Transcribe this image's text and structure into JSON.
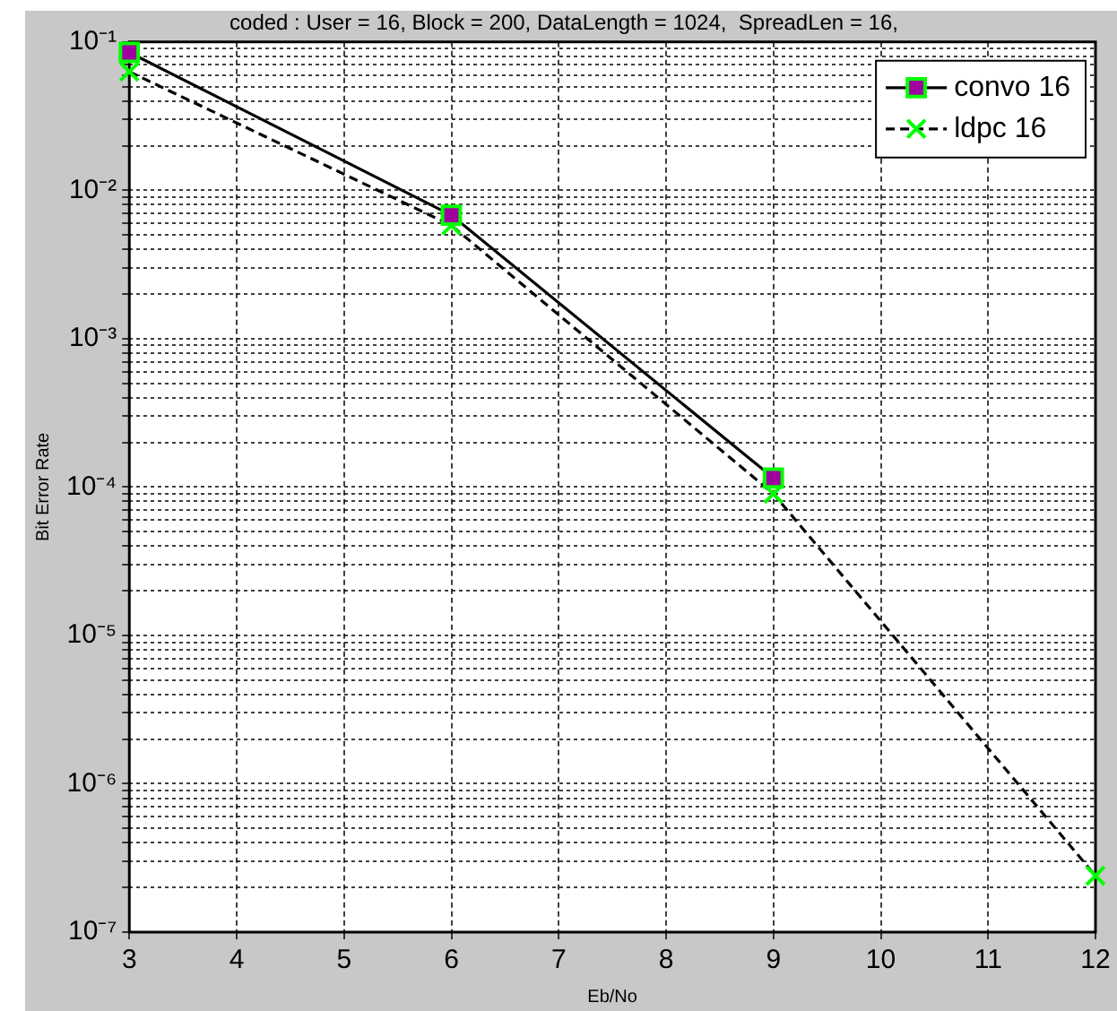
{
  "chart_data": {
    "type": "line",
    "subtitle": "coded : User = 16, Block = 200, DataLength = 1024,  SpreadLen = 16,",
    "xlabel": "Eb/No",
    "ylabel": "Bit Error Rate",
    "log": "y",
    "grid": true,
    "legend": "top right",
    "xlim": [
      3,
      12
    ],
    "xticks": [
      3,
      4,
      5,
      6,
      7,
      8,
      9,
      10,
      11,
      12
    ],
    "ylim": [
      1e-07,
      0.1
    ],
    "yticks": [
      {
        "value": 1e-07,
        "label": "10⁻⁷"
      },
      {
        "value": 2e-07,
        "label": null
      },
      {
        "value": 3e-07,
        "label": null
      },
      {
        "value": 4e-07,
        "label": null
      },
      {
        "value": 5e-07,
        "label": null
      },
      {
        "value": 6e-07,
        "label": null
      },
      {
        "value": 7e-07,
        "label": null
      },
      {
        "value": 8e-07,
        "label": null
      },
      {
        "value": 9e-07,
        "label": null
      },
      {
        "value": 1e-06,
        "label": "10⁻⁶"
      },
      {
        "value": 2e-06,
        "label": null
      },
      {
        "value": 3e-06,
        "label": null
      },
      {
        "value": 4e-06,
        "label": null
      },
      {
        "value": 5e-06,
        "label": null
      },
      {
        "value": 6e-06,
        "label": null
      },
      {
        "value": 7e-06,
        "label": null
      },
      {
        "value": 8e-06,
        "label": null
      },
      {
        "value": 9e-06,
        "label": null
      },
      {
        "value": 1e-05,
        "label": "10⁻⁵"
      },
      {
        "value": 2e-05,
        "label": null
      },
      {
        "value": 3e-05,
        "label": null
      },
      {
        "value": 4e-05,
        "label": null
      },
      {
        "value": 5e-05,
        "label": null
      },
      {
        "value": 6e-05,
        "label": null
      },
      {
        "value": 7e-05,
        "label": null
      },
      {
        "value": 8e-05,
        "label": null
      },
      {
        "value": 9e-05,
        "label": null
      },
      {
        "value": 0.0001,
        "label": "10⁻⁴"
      },
      {
        "value": 0.0002,
        "label": null
      },
      {
        "value": 0.0003,
        "label": null
      },
      {
        "value": 0.0004,
        "label": null
      },
      {
        "value": 0.0005,
        "label": null
      },
      {
        "value": 0.0006,
        "label": null
      },
      {
        "value": 0.0007,
        "label": null
      },
      {
        "value": 0.0008,
        "label": null
      },
      {
        "value": 0.0009,
        "label": null
      },
      {
        "value": 0.001,
        "label": "10⁻³"
      },
      {
        "value": 0.002,
        "label": null
      },
      {
        "value": 0.003,
        "label": null
      },
      {
        "value": 0.004,
        "label": null
      },
      {
        "value": 0.005,
        "label": null
      },
      {
        "value": 0.006,
        "label": null
      },
      {
        "value": 0.007,
        "label": null
      },
      {
        "value": 0.008,
        "label": null
      },
      {
        "value": 0.009,
        "label": null
      },
      {
        "value": 0.01,
        "label": "10⁻²"
      },
      {
        "value": 0.02,
        "label": null
      },
      {
        "value": 0.03,
        "label": null
      },
      {
        "value": 0.04,
        "label": null
      },
      {
        "value": 0.05,
        "label": null
      },
      {
        "value": 0.06,
        "label": null
      },
      {
        "value": 0.07,
        "label": null
      },
      {
        "value": 0.08,
        "label": null
      },
      {
        "value": 0.09,
        "label": null
      },
      {
        "value": 0.1,
        "label": "10⁻¹"
      }
    ],
    "series": [
      {
        "name": "convo 16",
        "color": "#a000a0",
        "marker": "square",
        "line_style": "solid",
        "x": [
          3,
          6,
          9
        ],
        "values": [
          0.085,
          0.0068,
          0.000115
        ]
      },
      {
        "name": "ldpc 16",
        "color": "#00ff00",
        "marker": "cross",
        "line_style": "dashed",
        "x": [
          3,
          6,
          9,
          12
        ],
        "values": [
          0.063,
          0.0058,
          9e-05,
          2.4e-07
        ]
      }
    ]
  }
}
